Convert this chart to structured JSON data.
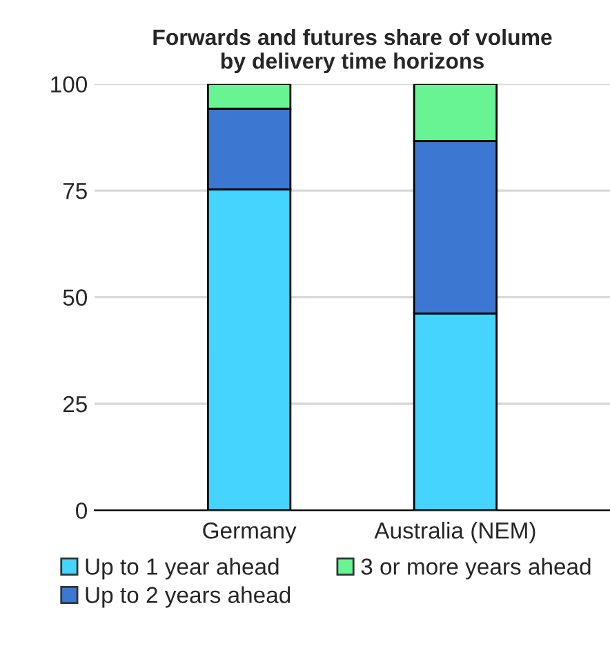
{
  "chart_data": {
    "type": "bar",
    "title": "Forwards and futures share of volume\nby delivery time horizons",
    "categories": [
      "Germany",
      "Australia (NEM)"
    ],
    "stacked": true,
    "series": [
      {
        "name": "Up to 1 year ahead",
        "color": "#45d4fe",
        "values": [
          75.3,
          46.2
        ]
      },
      {
        "name": "Up to 2 years ahead",
        "color": "#3c78d2",
        "values": [
          18.9,
          40.4
        ]
      },
      {
        "name": "3 or more years ahead",
        "color": "#68f493",
        "values": [
          5.8,
          13.4
        ]
      }
    ],
    "ylim": [
      0,
      100
    ],
    "yticks": [
      0,
      25,
      50,
      75,
      100
    ],
    "grid": "y",
    "legend": "bottom"
  }
}
